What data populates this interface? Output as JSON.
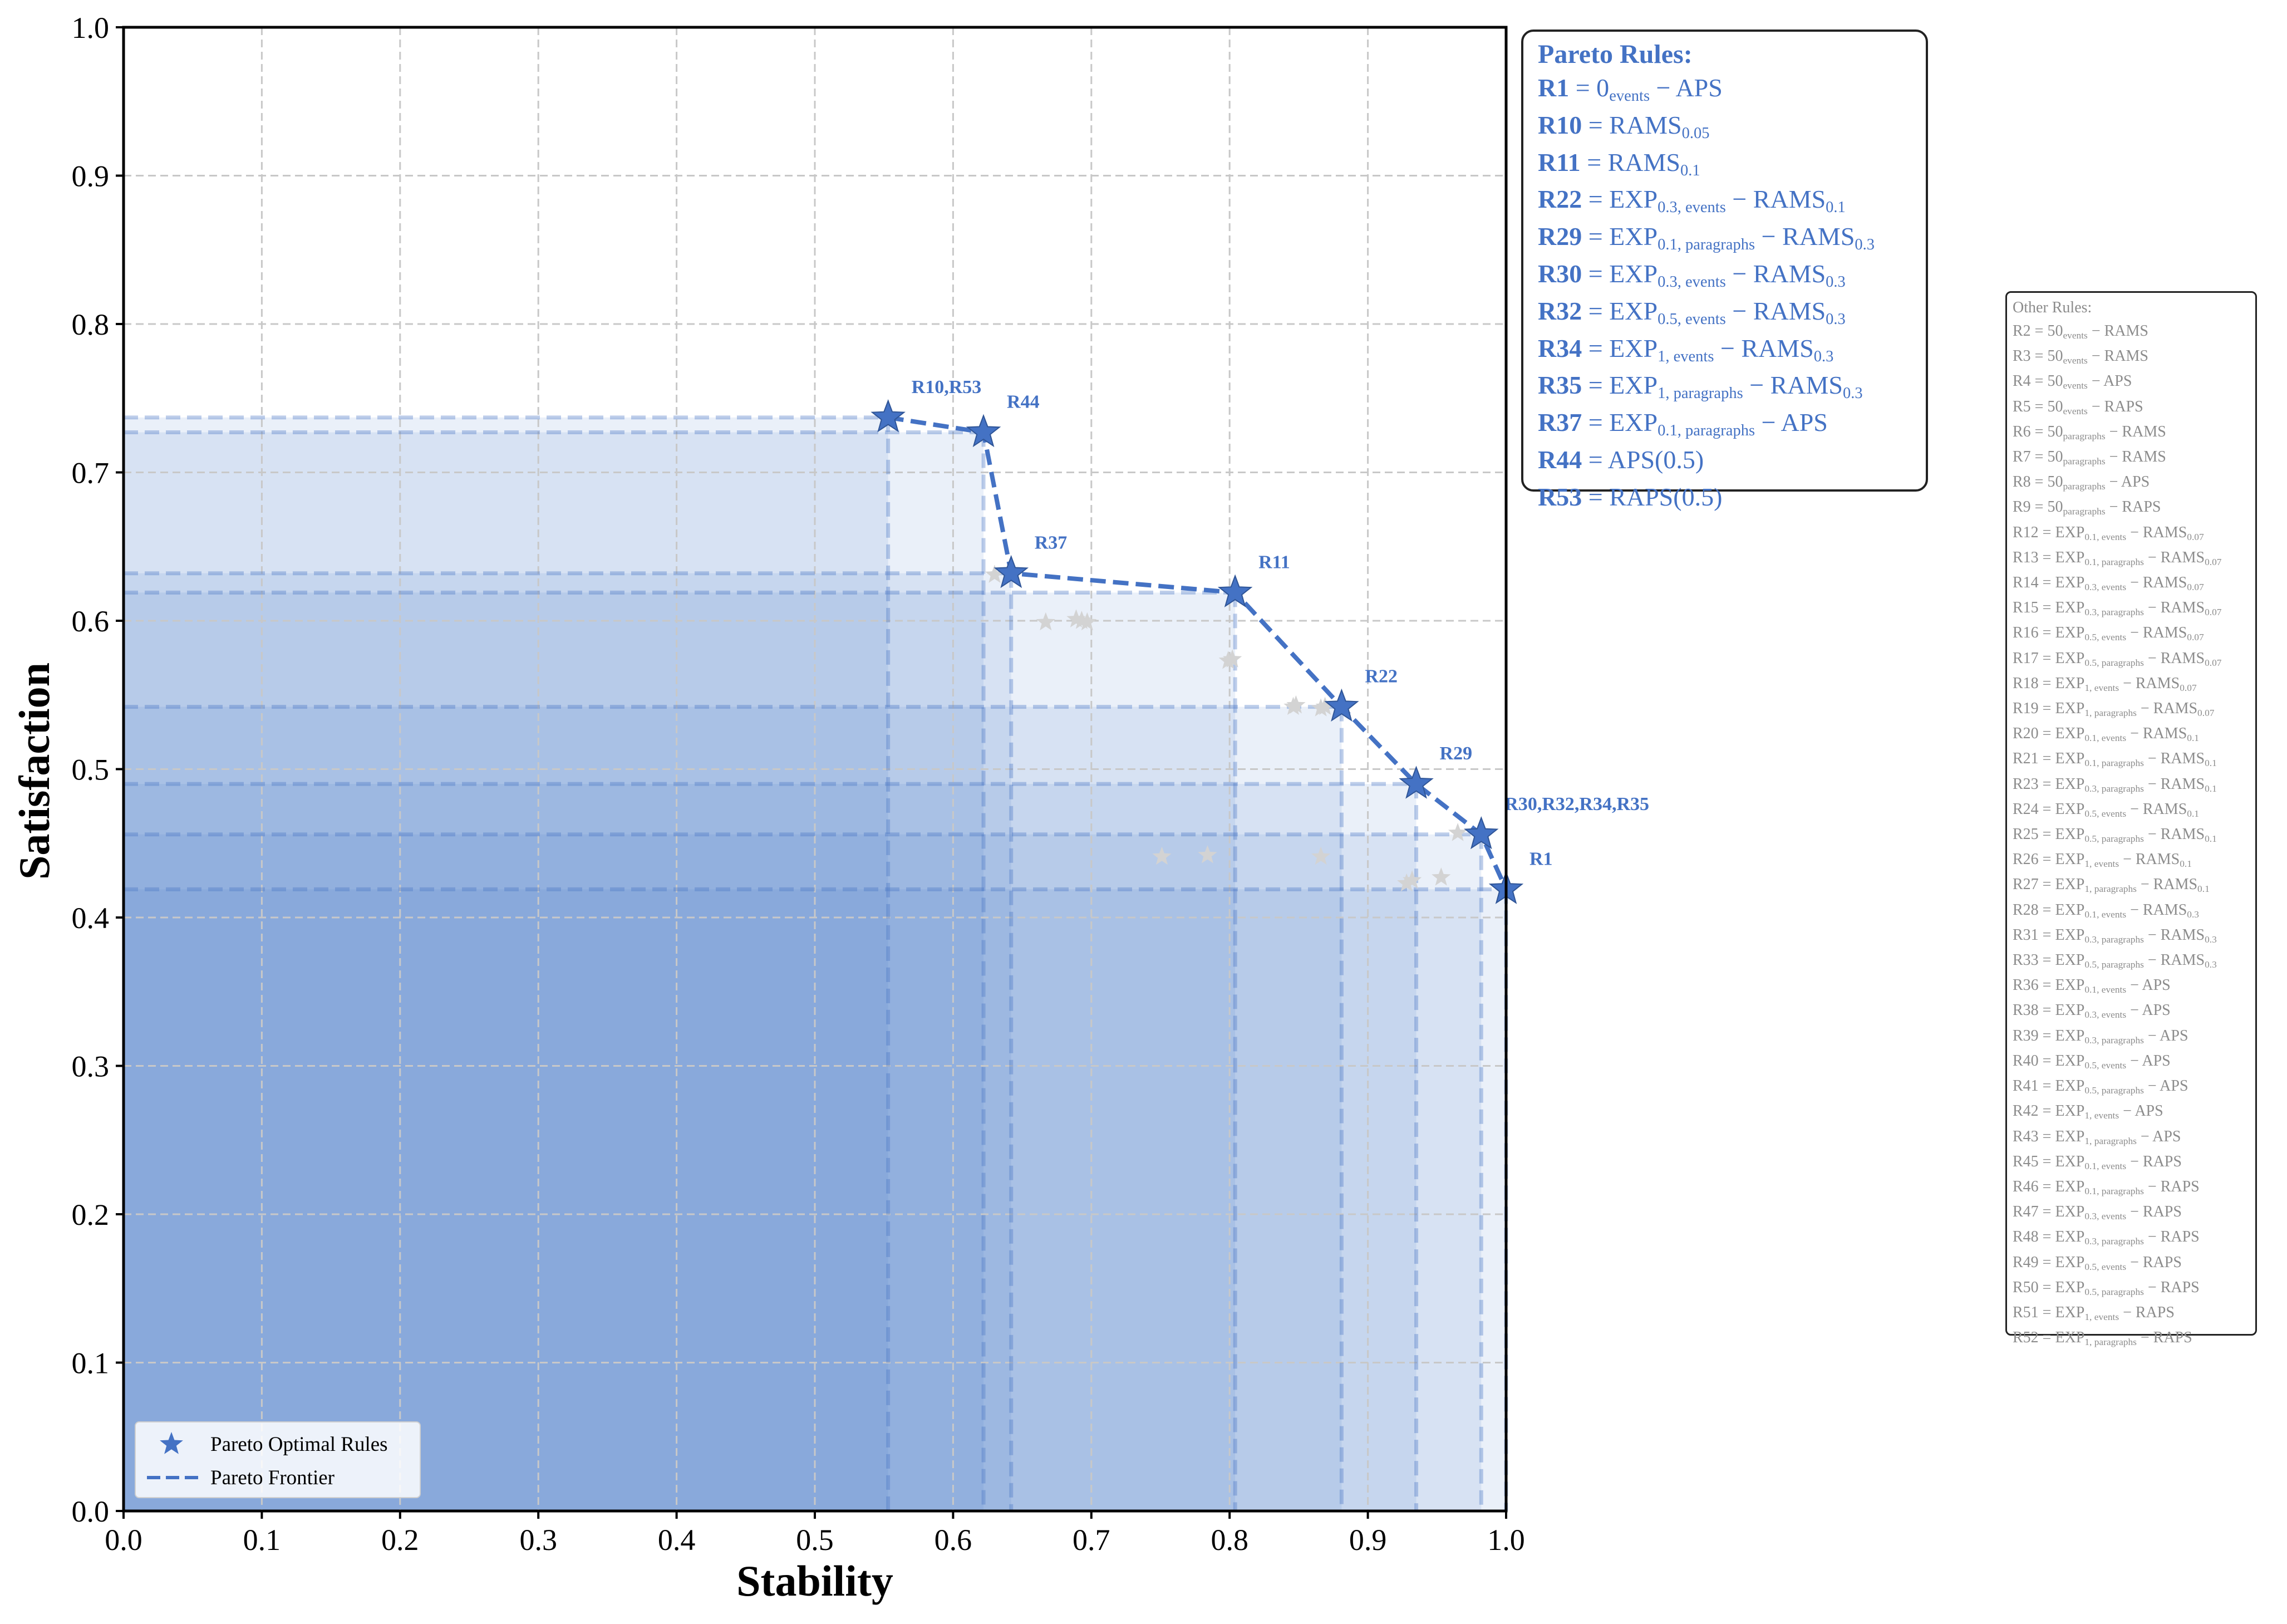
{
  "chart_data": {
    "type": "scatter",
    "xlabel": "Stability",
    "ylabel": "Satisfaction",
    "xlim": [
      0,
      1
    ],
    "ylim": [
      0,
      1
    ],
    "xticks": [
      "0.0",
      "0.1",
      "0.2",
      "0.3",
      "0.4",
      "0.5",
      "0.6",
      "0.7",
      "0.8",
      "0.9",
      "1.0"
    ],
    "yticks": [
      "0.0",
      "0.1",
      "0.2",
      "0.3",
      "0.4",
      "0.5",
      "0.6",
      "0.7",
      "0.8",
      "0.9",
      "1.0"
    ],
    "grid": true,
    "legend_position": "bottom-left",
    "legend": [
      "Pareto Optimal Rules",
      "Pareto Frontier"
    ],
    "pareto_points": [
      {
        "label": "R10,R53",
        "x": 0.553,
        "y": 0.737
      },
      {
        "label": "R44",
        "x": 0.622,
        "y": 0.727
      },
      {
        "label": "R37",
        "x": 0.642,
        "y": 0.632
      },
      {
        "label": "R11",
        "x": 0.804,
        "y": 0.619
      },
      {
        "label": "R22",
        "x": 0.881,
        "y": 0.542
      },
      {
        "label": "R29",
        "x": 0.935,
        "y": 0.49
      },
      {
        "label": "R30,R32,R34,R35",
        "x": 0.982,
        "y": 0.456
      },
      {
        "label": "R1",
        "x": 1.0,
        "y": 0.419
      }
    ],
    "other_points": [
      {
        "x": 0.63,
        "y": 0.631
      },
      {
        "x": 0.667,
        "y": 0.599
      },
      {
        "x": 0.689,
        "y": 0.601
      },
      {
        "x": 0.693,
        "y": 0.6
      },
      {
        "x": 0.697,
        "y": 0.599
      },
      {
        "x": 0.799,
        "y": 0.573
      },
      {
        "x": 0.802,
        "y": 0.574
      },
      {
        "x": 0.846,
        "y": 0.542
      },
      {
        "x": 0.848,
        "y": 0.543
      },
      {
        "x": 0.866,
        "y": 0.541
      },
      {
        "x": 0.869,
        "y": 0.542
      },
      {
        "x": 0.751,
        "y": 0.441
      },
      {
        "x": 0.784,
        "y": 0.442
      },
      {
        "x": 0.866,
        "y": 0.441
      },
      {
        "x": 0.928,
        "y": 0.423
      },
      {
        "x": 0.932,
        "y": 0.425
      },
      {
        "x": 0.953,
        "y": 0.427
      },
      {
        "x": 0.965,
        "y": 0.457
      }
    ],
    "colors": {
      "pareto": "#4472C4",
      "other": "#d3d3d3",
      "fill": "#4472C4",
      "grid": "#c8c8c8"
    }
  },
  "pareto_box": {
    "title": "Pareto Rules:",
    "rules": [
      {
        "id": "R1",
        "html": "0<sub>events</sub> − APS"
      },
      {
        "id": "R10",
        "html": "RAMS<sub>0.05</sub>"
      },
      {
        "id": "R11",
        "html": "RAMS<sub>0.1</sub>"
      },
      {
        "id": "R22",
        "html": "EXP<sub>0.3, events</sub> − RAMS<sub>0.1</sub>"
      },
      {
        "id": "R29",
        "html": "EXP<sub>0.1, paragraphs</sub> − RAMS<sub>0.3</sub>"
      },
      {
        "id": "R30",
        "html": "EXP<sub>0.3, events</sub> − RAMS<sub>0.3</sub>"
      },
      {
        "id": "R32",
        "html": "EXP<sub>0.5, events</sub> − RAMS<sub>0.3</sub>"
      },
      {
        "id": "R34",
        "html": "EXP<sub>1, events</sub> − RAMS<sub>0.3</sub>"
      },
      {
        "id": "R35",
        "html": "EXP<sub>1, paragraphs</sub> − RAMS<sub>0.3</sub>"
      },
      {
        "id": "R37",
        "html": "EXP<sub>0.1, paragraphs</sub> − APS"
      },
      {
        "id": "R44",
        "html": "APS(0.5)"
      },
      {
        "id": "R53",
        "html": "RAPS(0.5)"
      }
    ]
  },
  "other_box": {
    "title": "Other Rules:",
    "rules": [
      {
        "id": "R2",
        "html": "50<sub>events</sub> − RAMS"
      },
      {
        "id": "R3",
        "html": "50<sub>events</sub> − RAMS"
      },
      {
        "id": "R4",
        "html": "50<sub>events</sub> − APS"
      },
      {
        "id": "R5",
        "html": "50<sub>events</sub> − RAPS"
      },
      {
        "id": "R6",
        "html": "50<sub>paragraphs</sub> − RAMS"
      },
      {
        "id": "R7",
        "html": "50<sub>paragraphs</sub> − RAMS"
      },
      {
        "id": "R8",
        "html": "50<sub>paragraphs</sub> − APS"
      },
      {
        "id": "R9",
        "html": "50<sub>paragraphs</sub> − RAPS"
      },
      {
        "id": "R12",
        "html": "EXP<sub>0.1, events</sub> − RAMS<sub>0.07</sub>"
      },
      {
        "id": "R13",
        "html": "EXP<sub>0.1, paragraphs</sub> − RAMS<sub>0.07</sub>"
      },
      {
        "id": "R14",
        "html": "EXP<sub>0.3, events</sub> − RAMS<sub>0.07</sub>"
      },
      {
        "id": "R15",
        "html": "EXP<sub>0.3, paragraphs</sub> − RAMS<sub>0.07</sub>"
      },
      {
        "id": "R16",
        "html": "EXP<sub>0.5, events</sub> − RAMS<sub>0.07</sub>"
      },
      {
        "id": "R17",
        "html": "EXP<sub>0.5, paragraphs</sub> − RAMS<sub>0.07</sub>"
      },
      {
        "id": "R18",
        "html": "EXP<sub>1, events</sub> − RAMS<sub>0.07</sub>"
      },
      {
        "id": "R19",
        "html": "EXP<sub>1, paragraphs</sub> − RAMS<sub>0.07</sub>"
      },
      {
        "id": "R20",
        "html": "EXP<sub>0.1, events</sub> − RAMS<sub>0.1</sub>"
      },
      {
        "id": "R21",
        "html": "EXP<sub>0.1, paragraphs</sub> − RAMS<sub>0.1</sub>"
      },
      {
        "id": "R23",
        "html": "EXP<sub>0.3, paragraphs</sub> − RAMS<sub>0.1</sub>"
      },
      {
        "id": "R24",
        "html": "EXP<sub>0.5, events</sub> − RAMS<sub>0.1</sub>"
      },
      {
        "id": "R25",
        "html": "EXP<sub>0.5, paragraphs</sub> − RAMS<sub>0.1</sub>"
      },
      {
        "id": "R26",
        "html": "EXP<sub>1, events</sub> − RAMS<sub>0.1</sub>"
      },
      {
        "id": "R27",
        "html": "EXP<sub>1, paragraphs</sub> − RAMS<sub>0.1</sub>"
      },
      {
        "id": "R28",
        "html": "EXP<sub>0.1, events</sub> − RAMS<sub>0.3</sub>"
      },
      {
        "id": "R31",
        "html": "EXP<sub>0.3, paragraphs</sub> − RAMS<sub>0.3</sub>"
      },
      {
        "id": "R33",
        "html": "EXP<sub>0.5, paragraphs</sub> − RAMS<sub>0.3</sub>"
      },
      {
        "id": "R36",
        "html": "EXP<sub>0.1, events</sub> − APS"
      },
      {
        "id": "R38",
        "html": "EXP<sub>0.3, events</sub> − APS"
      },
      {
        "id": "R39",
        "html": "EXP<sub>0.3, paragraphs</sub> − APS"
      },
      {
        "id": "R40",
        "html": "EXP<sub>0.5, events</sub> − APS"
      },
      {
        "id": "R41",
        "html": "EXP<sub>0.5, paragraphs</sub> − APS"
      },
      {
        "id": "R42",
        "html": "EXP<sub>1, events</sub> − APS"
      },
      {
        "id": "R43",
        "html": "EXP<sub>1, paragraphs</sub> − APS"
      },
      {
        "id": "R45",
        "html": "EXP<sub>0.1, events</sub> − RAPS"
      },
      {
        "id": "R46",
        "html": "EXP<sub>0.1, paragraphs</sub> − RAPS"
      },
      {
        "id": "R47",
        "html": "EXP<sub>0.3, events</sub> − RAPS"
      },
      {
        "id": "R48",
        "html": "EXP<sub>0.3, paragraphs</sub> − RAPS"
      },
      {
        "id": "R49",
        "html": "EXP<sub>0.5, events</sub> − RAPS"
      },
      {
        "id": "R50",
        "html": "EXP<sub>0.5, paragraphs</sub> − RAPS"
      },
      {
        "id": "R51",
        "html": "EXP<sub>1, events</sub> − RAPS"
      },
      {
        "id": "R52",
        "html": "EXP<sub>1, paragraphs</sub> − RAPS"
      }
    ]
  }
}
